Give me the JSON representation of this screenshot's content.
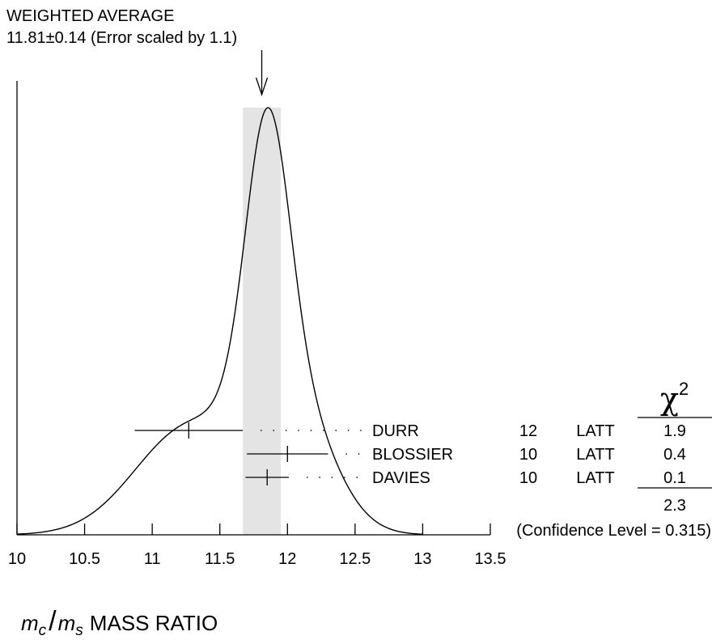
{
  "chart_data": {
    "type": "ideogram",
    "title": "WEIGHTED AVERAGE",
    "subtitle_prefix": "11.81",
    "subtitle_pm": "±",
    "subtitle_suffix": "0.14 (Error scaled by 1.1)",
    "average": {
      "value": 11.81,
      "error": 0.14
    },
    "xlim": [
      10,
      13.5
    ],
    "xticks": [
      10,
      10.5,
      11,
      11.5,
      12,
      12.5,
      13,
      13.5
    ],
    "xtick_labels": [
      "10",
      "10.5",
      "11",
      "11.5",
      "12",
      "12.5",
      "13",
      "13.5"
    ],
    "xlabel_m": "m",
    "xlabel_sub1": "c",
    "xlabel_slash": "/",
    "xlabel_sub2": "s",
    "xlabel_text": "MASS RATIO",
    "chi2_symbol": "χ",
    "chi2_exp": "2",
    "measurements": [
      {
        "name": "DURR",
        "value": 11.27,
        "err_low": 0.4,
        "err_high": 0.4,
        "ref": "12",
        "tech": "LATT",
        "chi2": "1.9"
      },
      {
        "name": "BLOSSIER",
        "value": 12.0,
        "err_low": 0.3,
        "err_high": 0.3,
        "ref": "10",
        "tech": "LATT",
        "chi2": "0.4"
      },
      {
        "name": "DAVIES",
        "value": 11.85,
        "err_low": 0.16,
        "err_high": 0.16,
        "ref": "10",
        "tech": "LATT",
        "chi2": "0.1"
      }
    ],
    "chi2_total": "2.3",
    "confidence_level": "(Confidence Level = 0.315)"
  }
}
